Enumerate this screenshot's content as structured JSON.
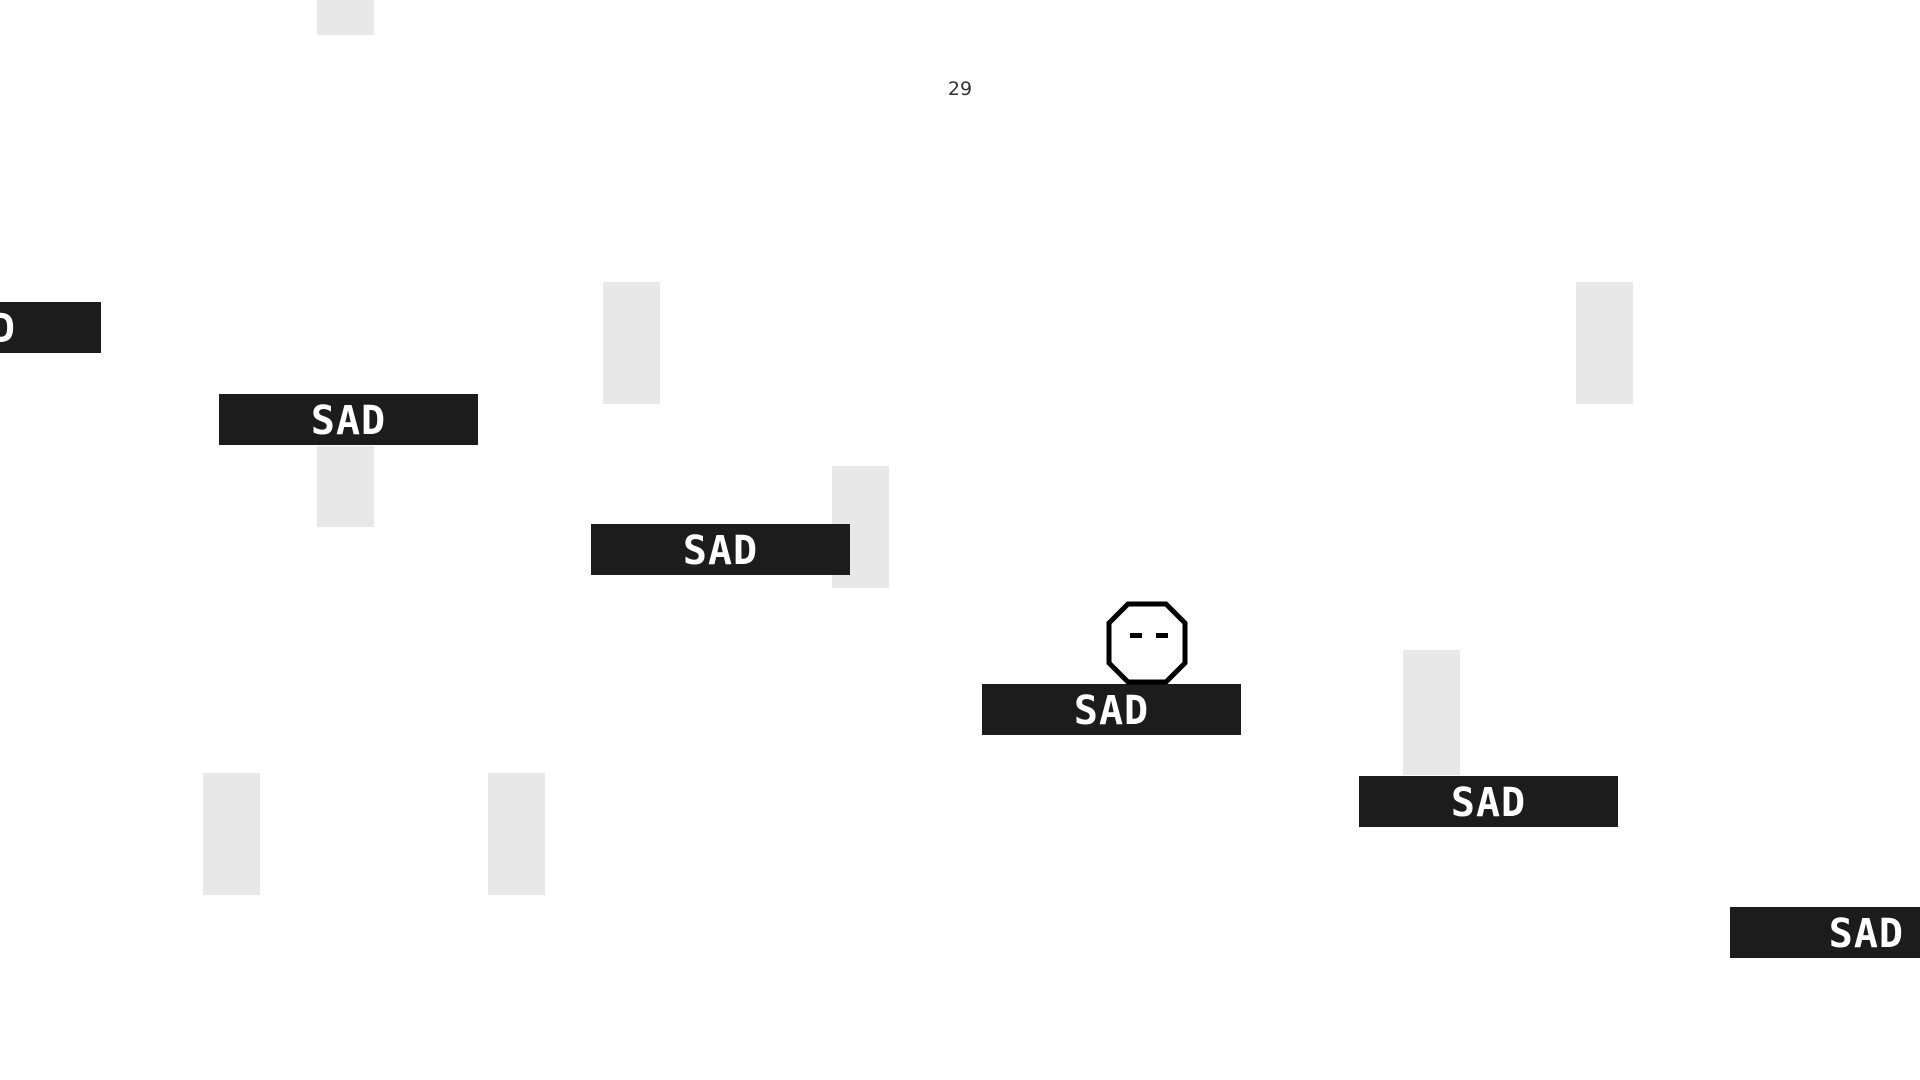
{
  "hud": {
    "score": "29"
  },
  "platforms": {
    "label": "SAD",
    "partial_label": "D"
  },
  "player": {
    "icon": "sad-face-icon",
    "expression": "sad"
  },
  "colors": {
    "background": "#ffffff",
    "platform": "#1c1c1c",
    "platform_text": "#ffffff",
    "pillar": "#e8e8e8",
    "player_outline": "#000000"
  }
}
